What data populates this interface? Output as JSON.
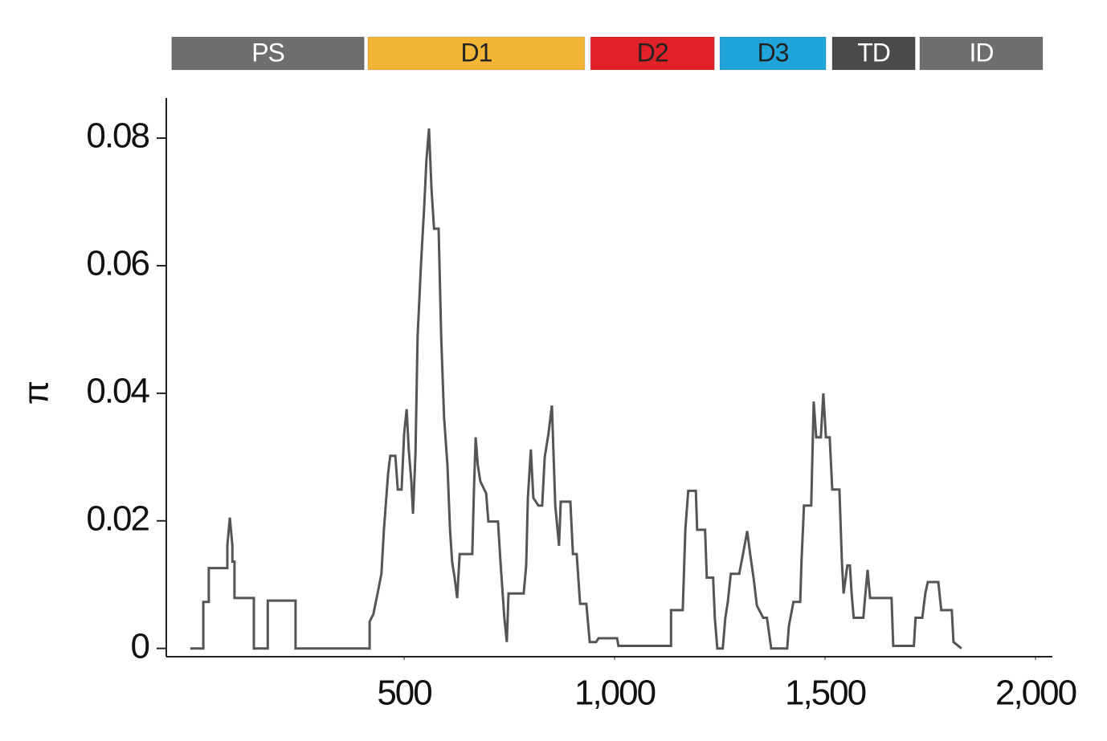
{
  "chart_data": {
    "type": "line",
    "y_label": "π",
    "color": "#555555",
    "xlim": [
      -65,
      2040
    ],
    "ylim": [
      -0.0013,
      0.0863
    ],
    "xticks": [
      500,
      {
        "value": 1000,
        "label": "1,000"
      },
      {
        "value": 1500,
        "label": "1,500"
      },
      {
        "value": 2000,
        "label": "2,000"
      }
    ],
    "yticks": [
      0,
      0.02,
      0.04,
      0.06,
      0.08
    ],
    "grid": false,
    "domains": [
      {
        "name": "PS",
        "start": -52,
        "end": 405,
        "color": "#6f6d6e",
        "text_color": "#ffffff"
      },
      {
        "name": "D1",
        "start": 414,
        "end": 929,
        "color": "#f2b536",
        "text_color": "#222222"
      },
      {
        "name": "D2",
        "start": 943,
        "end": 1237,
        "color": "#e02228",
        "text_color": "#222222"
      },
      {
        "name": "D3",
        "start": 1250,
        "end": 1502,
        "color": "#20a4d9",
        "text_color": "#222222"
      },
      {
        "name": "TD",
        "start": 1517,
        "end": 1714,
        "color": "#4a4a4c",
        "text_color": "#ffffff"
      },
      {
        "name": "ID",
        "start": 1725,
        "end": 2017,
        "color": "#6f6d6e",
        "text_color": "#ffffff"
      }
    ],
    "x": [
      -8,
      23,
      23,
      36,
      36,
      80,
      80,
      86,
      92,
      92,
      97,
      97,
      143,
      143,
      176,
      176,
      242,
      242,
      418,
      418,
      427,
      437,
      446,
      452,
      462,
      467,
      479,
      485,
      494,
      500,
      506,
      511,
      517,
      521,
      527,
      532,
      540,
      548,
      553,
      559,
      565,
      571,
      582,
      588,
      595,
      603,
      609,
      614,
      620,
      626,
      632,
      662,
      666,
      670,
      675,
      681,
      695,
      700,
      723,
      729,
      738,
      744,
      748,
      784,
      790,
      794,
      801,
      807,
      819,
      828,
      834,
      843,
      851,
      859,
      868,
      872,
      895,
      901,
      910,
      918,
      933,
      941,
      956,
      962,
      1006,
      1009,
      1134,
      1134,
      1162,
      1168,
      1175,
      1193,
      1196,
      1215,
      1219,
      1234,
      1238,
      1244,
      1257,
      1263,
      1269,
      1276,
      1296,
      1305,
      1315,
      1322,
      1330,
      1338,
      1353,
      1362,
      1372,
      1410,
      1414,
      1425,
      1441,
      1444,
      1450,
      1467,
      1473,
      1479,
      1490,
      1496,
      1502,
      1511,
      1517,
      1534,
      1540,
      1544,
      1553,
      1559,
      1563,
      1568,
      1591,
      1595,
      1601,
      1607,
      1658,
      1662,
      1711,
      1715,
      1731,
      1738,
      1744,
      1769,
      1776,
      1801,
      1805,
      1824
    ],
    "values": [
      0,
      0,
      0.0073,
      0.0073,
      0.0126,
      0.0126,
      0.0161,
      0.0205,
      0.0161,
      0.0136,
      0.0136,
      0.0079,
      0.0079,
      0,
      0,
      0.0075,
      0.0075,
      0,
      0,
      0.0042,
      0.0054,
      0.0086,
      0.0117,
      0.0186,
      0.0274,
      0.0302,
      0.0302,
      0.0249,
      0.0249,
      0.0337,
      0.0375,
      0.0312,
      0.0262,
      0.0211,
      0.0306,
      0.0488,
      0.0601,
      0.0696,
      0.0765,
      0.0815,
      0.0721,
      0.0658,
      0.0658,
      0.0488,
      0.0362,
      0.0287,
      0.0186,
      0.0136,
      0.0111,
      0.0079,
      0.0148,
      0.0148,
      0.0249,
      0.0331,
      0.0287,
      0.0262,
      0.0243,
      0.0199,
      0.0199,
      0.0136,
      0.0048,
      0.001,
      0.0086,
      0.0086,
      0.013,
      0.0236,
      0.0312,
      0.0236,
      0.0224,
      0.0224,
      0.03,
      0.0337,
      0.0381,
      0.0224,
      0.0161,
      0.023,
      0.023,
      0.0148,
      0.0148,
      0.007,
      0.007,
      0.001,
      0.001,
      0.0016,
      0.0016,
      0.0004,
      0.0004,
      0.006,
      0.006,
      0.0186,
      0.0247,
      0.0247,
      0.0186,
      0.0186,
      0.0111,
      0.0111,
      0.0048,
      0,
      0,
      0.0048,
      0.0073,
      0.0117,
      0.0117,
      0.0148,
      0.0184,
      0.0148,
      0.0111,
      0.0067,
      0.0048,
      0.0048,
      0,
      0,
      0.0035,
      0.0073,
      0.0073,
      0.0136,
      0.0224,
      0.0224,
      0.0387,
      0.0331,
      0.0331,
      0.04,
      0.0331,
      0.0331,
      0.0249,
      0.0249,
      0.0136,
      0.0086,
      0.013,
      0.013,
      0.0086,
      0.0048,
      0.0048,
      0.0079,
      0.0123,
      0.0079,
      0.0079,
      0.0004,
      0.0004,
      0.0048,
      0.0048,
      0.0086,
      0.0104,
      0.0104,
      0.006,
      0.006,
      0.001,
      0
    ]
  }
}
